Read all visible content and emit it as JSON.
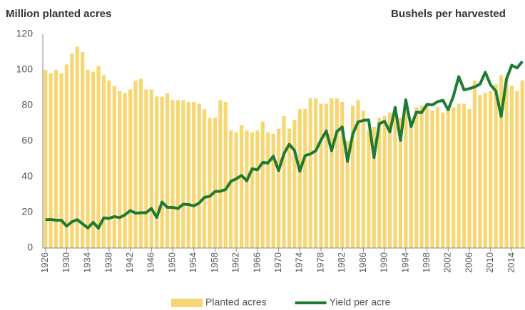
{
  "chart_data": {
    "type": "bar_line",
    "title": "Million planted acres",
    "y2_title": "Bushels per harvested",
    "x": [
      1926,
      1927,
      1928,
      1929,
      1930,
      1931,
      1932,
      1933,
      1934,
      1935,
      1936,
      1937,
      1938,
      1939,
      1940,
      1941,
      1942,
      1943,
      1944,
      1945,
      1946,
      1947,
      1948,
      1949,
      1950,
      1951,
      1952,
      1953,
      1954,
      1955,
      1956,
      1957,
      1958,
      1959,
      1960,
      1961,
      1962,
      1963,
      1964,
      1965,
      1966,
      1967,
      1968,
      1969,
      1970,
      1971,
      1972,
      1973,
      1974,
      1975,
      1976,
      1977,
      1978,
      1979,
      1980,
      1981,
      1982,
      1983,
      1984,
      1985,
      1986,
      1987,
      1988,
      1989,
      1990,
      1991,
      1992,
      1993,
      1994,
      1995,
      1996,
      1997,
      1998,
      1999,
      2000,
      2001,
      2002,
      2003,
      2004,
      2005,
      2006,
      2007,
      2008,
      2009,
      2010,
      2011,
      2012,
      2013,
      2014,
      2015,
      2016
    ],
    "series": [
      {
        "name": "Planted acres",
        "color": "#f7d774",
        "kind": "bar",
        "values": [
          100,
          98,
          100,
          98,
          103,
          109,
          113,
          110,
          100,
          99,
          102,
          97,
          94,
          91,
          88,
          87,
          89,
          94,
          95,
          89,
          89,
          85,
          85,
          87,
          83,
          83,
          83,
          82,
          82,
          81,
          78,
          73,
          73,
          83,
          82,
          66,
          65,
          69,
          66,
          65,
          66,
          71,
          65,
          64,
          67,
          74,
          67,
          72,
          78,
          78,
          84,
          84,
          81,
          81,
          84,
          84,
          82,
          60,
          80,
          83,
          77,
          66,
          68,
          73,
          74,
          76,
          79,
          73,
          79,
          71,
          79,
          80,
          80,
          77,
          79,
          76,
          79,
          79,
          81,
          81,
          78,
          94,
          86,
          87,
          88,
          92,
          97,
          95,
          91,
          88,
          94
        ]
      },
      {
        "name": "Yield per acre",
        "color": "#1e7b34",
        "kind": "line",
        "axis": "y2",
        "values": [
          26.5,
          26.7,
          26,
          26,
          20.5,
          24.5,
          26.5,
          22.6,
          18.7,
          24,
          18.6,
          28.2,
          27.7,
          29.4,
          28.4,
          31,
          35,
          32.6,
          33,
          33,
          37,
          28.6,
          43,
          38,
          38,
          36.9,
          41,
          40.7,
          39.4,
          42,
          47.4,
          48.3,
          52.8,
          53.1,
          54.7,
          62.4,
          64.7,
          67.9,
          62.9,
          74.1,
          73.1,
          80.1,
          79.5,
          85.9,
          72.4,
          88.1,
          97,
          91.3,
          71.9,
          86.4,
          88,
          90.8,
          101,
          109.5,
          91,
          108.9,
          113.2,
          81.1,
          106.7,
          118,
          119.4,
          119.8,
          84.6,
          116.3,
          118.5,
          108.6,
          131.5,
          100.7,
          138.6,
          113.5,
          127.1,
          126.7,
          134.4,
          133.8,
          136.9,
          138.2,
          129.3,
          142.2,
          160.3,
          147.9,
          149.1,
          150.7,
          153.3,
          164.4,
          152.6,
          146.8,
          123.1,
          158.1,
          171,
          168.4,
          174.6
        ]
      }
    ],
    "xlim": [
      1925.5,
      2016.5
    ],
    "xticks": [
      1926,
      1930,
      1934,
      1938,
      1942,
      1946,
      1950,
      1954,
      1958,
      1962,
      1966,
      1970,
      1974,
      1978,
      1982,
      1986,
      1990,
      1994,
      1998,
      2002,
      2006,
      2010,
      2014
    ],
    "ylim": [
      0,
      120
    ],
    "yticks": [
      0,
      20,
      40,
      60,
      80,
      100,
      120
    ],
    "y2lim": [
      0,
      200
    ],
    "grid": false,
    "legend": "bottom"
  }
}
